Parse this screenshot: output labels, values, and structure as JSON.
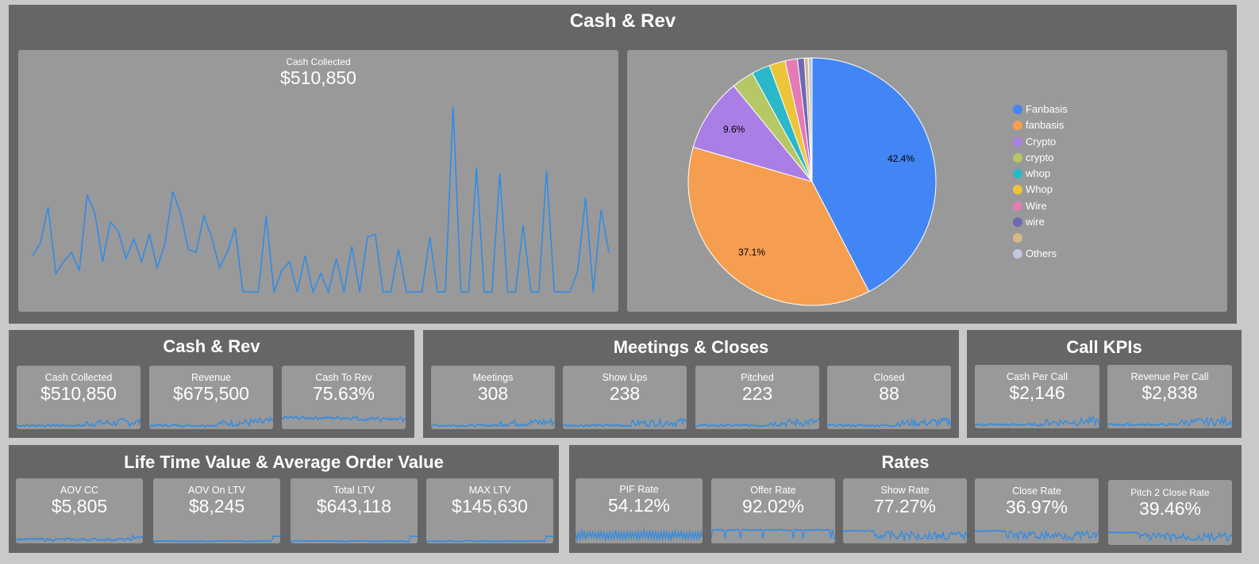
{
  "top": {
    "title": "Cash & Rev",
    "line_card": {
      "label": "Cash Collected",
      "value": "$510,850"
    },
    "pie": {
      "labels": [
        {
          "text": "42.4%"
        },
        {
          "text": "37.1%"
        },
        {
          "text": "9.6%"
        }
      ],
      "legend": [
        {
          "name": "Fanbasis",
          "color": "#4285f4"
        },
        {
          "name": "fanbasis",
          "color": "#f59e4f"
        },
        {
          "name": "Crypto",
          "color": "#a97fe6"
        },
        {
          "name": "crypto",
          "color": "#b6c766"
        },
        {
          "name": "whop",
          "color": "#2ab7c9"
        },
        {
          "name": "Whop",
          "color": "#ecc53a"
        },
        {
          "name": "Wire",
          "color": "#e57bb5"
        },
        {
          "name": "wire",
          "color": "#6c69b5"
        },
        {
          "name": "",
          "color": "#d6b98a"
        },
        {
          "name": "Others",
          "color": "#c0c8e0"
        }
      ]
    }
  },
  "cash_rev": {
    "title": "Cash & Rev",
    "cards": [
      {
        "label": "Cash Collected",
        "value": "$510,850"
      },
      {
        "label": "Revenue",
        "value": "$675,500"
      },
      {
        "label": "Cash To Rev",
        "value": "75.63%"
      }
    ]
  },
  "meetings": {
    "title": "Meetings & Closes",
    "cards": [
      {
        "label": "Meetings",
        "value": "308"
      },
      {
        "label": "Show Ups",
        "value": "238"
      },
      {
        "label": "Pitched",
        "value": "223"
      },
      {
        "label": "Closed",
        "value": "88"
      }
    ]
  },
  "call_kpis": {
    "title": "Call KPIs",
    "cards": [
      {
        "label": "Cash Per Call",
        "value": "$2,146"
      },
      {
        "label": "Revenue Per Call",
        "value": "$2,838"
      }
    ]
  },
  "ltv": {
    "title": "Life Time Value & Average Order Value",
    "cards": [
      {
        "label": "AOV CC",
        "value": "$5,805"
      },
      {
        "label": "AOV On LTV",
        "value": "$8,245"
      },
      {
        "label": "Total LTV",
        "value": "$643,118"
      },
      {
        "label": "MAX LTV",
        "value": "$145,630"
      }
    ]
  },
  "rates": {
    "title": "Rates",
    "cards": [
      {
        "label": "PIF Rate",
        "value": "54.12%"
      },
      {
        "label": "Offer Rate",
        "value": "92.02%"
      },
      {
        "label": "Show Rate",
        "value": "77.27%"
      },
      {
        "label": "Close Rate",
        "value": "36.97%"
      },
      {
        "label": "Pitch 2 Close Rate",
        "value": "39.46%"
      }
    ]
  },
  "chart_data": [
    {
      "type": "area",
      "title": "Cash Collected",
      "values": [
        6000,
        8000,
        14000,
        3000,
        5000,
        6500,
        3500,
        16000,
        13000,
        5000,
        11500,
        10000,
        5500,
        8700,
        5000,
        9500,
        4000,
        8000,
        16500,
        13000,
        7000,
        6500,
        12500,
        9000,
        4000,
        6500,
        10500,
        0,
        0,
        0,
        12500,
        0,
        3500,
        5000,
        0,
        6000,
        0,
        3000,
        0,
        5500,
        0,
        7500,
        0,
        9000,
        9500,
        0,
        0,
        7000,
        0,
        0,
        0,
        9000,
        0,
        0,
        30500,
        0,
        0,
        20500,
        0,
        0,
        19500,
        0,
        0,
        11000,
        0,
        0,
        20000,
        0,
        0,
        0,
        3500,
        15500,
        0,
        13500,
        6500
      ],
      "ylim": [
        0,
        32000
      ]
    },
    {
      "type": "pie",
      "slices": [
        {
          "name": "Fanbasis",
          "value": 42.4
        },
        {
          "name": "fanbasis",
          "value": 37.1
        },
        {
          "name": "Crypto",
          "value": 9.6
        },
        {
          "name": "crypto",
          "value": 2.9
        },
        {
          "name": "whop",
          "value": 2.4
        },
        {
          "name": "Whop",
          "value": 2.1
        },
        {
          "name": "Wire",
          "value": 1.6
        },
        {
          "name": "wire",
          "value": 0.9
        },
        {
          "name": "",
          "value": 0.5
        },
        {
          "name": "Others",
          "value": 0.5
        }
      ]
    }
  ],
  "style": {
    "line_color": "#2b8be8",
    "panel_bg": "#666666",
    "card_bg": "#999999",
    "page_bg": "#c9c9c9"
  }
}
